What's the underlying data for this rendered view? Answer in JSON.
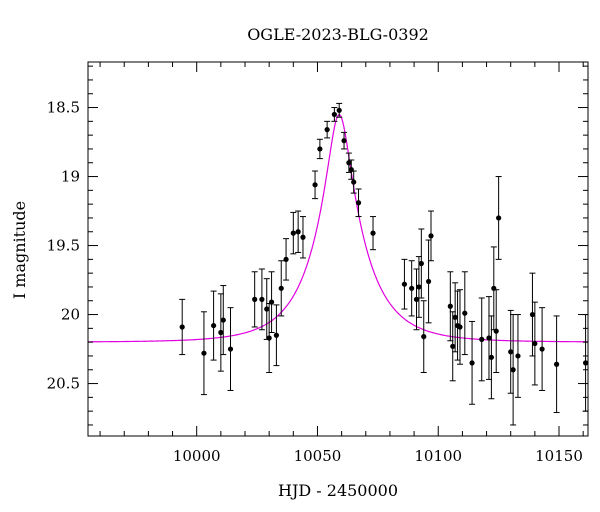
{
  "chart_data": {
    "type": "scatter",
    "title": "OGLE-2023-BLG-0392",
    "xlabel": "HJD - 2450000",
    "ylabel": "I magnitude",
    "xlim": [
      9955,
      10162
    ],
    "ylim": [
      20.88,
      18.17
    ],
    "y_inverted": true,
    "grid": false,
    "x_ticks": [
      10000,
      10050,
      10100,
      10150
    ],
    "x_tick_labels": [
      "10000",
      "10050",
      "10100",
      "10150"
    ],
    "y_ticks": [
      18.5,
      19,
      19.5,
      20,
      20.5
    ],
    "y_tick_labels": [
      "18.5",
      "19",
      "19.5",
      "20",
      "20.5"
    ],
    "colors": {
      "model": "#e100e1",
      "points": "#000000"
    },
    "model": {
      "name": "",
      "type": "point-lens fit",
      "peak_time": 10059,
      "peak_mag": 18.55,
      "baseline_mag": 20.2
    },
    "series": [
      {
        "name": "",
        "x": [
          9994,
          10003,
          10007,
          10010,
          10011,
          10014,
          10024,
          10027,
          10029,
          10030,
          10031,
          10033,
          10035,
          10037,
          10040,
          10042,
          10044,
          10049,
          10051,
          10054,
          10057,
          10059,
          10061,
          10063,
          10064,
          10065,
          10067,
          10073,
          10086,
          10089,
          10091,
          10092,
          10093,
          10094,
          10096,
          10097,
          10105,
          10106,
          10107,
          10108,
          10109,
          10111,
          10114,
          10118,
          10121,
          10122,
          10123,
          10124,
          10125,
          10130,
          10131,
          10133,
          10139,
          10140,
          10143,
          10149,
          10161
        ],
        "y": [
          20.09,
          20.28,
          20.08,
          20.13,
          20.04,
          20.25,
          19.89,
          19.89,
          19.96,
          20.17,
          19.91,
          20.15,
          19.81,
          19.6,
          19.41,
          19.4,
          19.44,
          19.06,
          18.8,
          18.66,
          18.55,
          18.52,
          18.74,
          18.9,
          18.95,
          19.04,
          19.19,
          19.41,
          19.78,
          19.81,
          19.89,
          19.8,
          19.63,
          20.16,
          19.76,
          19.43,
          19.94,
          20.23,
          20.02,
          20.08,
          20.09,
          19.99,
          20.35,
          20.18,
          20.17,
          20.31,
          19.81,
          20.12,
          19.3,
          20.27,
          20.4,
          20.3,
          20.0,
          20.21,
          20.25,
          20.36,
          20.35
        ],
        "err": [
          0.2,
          0.3,
          0.25,
          0.28,
          0.25,
          0.3,
          0.2,
          0.22,
          0.22,
          0.25,
          0.22,
          0.22,
          0.2,
          0.15,
          0.15,
          0.15,
          0.15,
          0.1,
          0.07,
          0.06,
          0.05,
          0.05,
          0.06,
          0.07,
          0.07,
          0.08,
          0.1,
          0.12,
          0.18,
          0.2,
          0.22,
          0.22,
          0.25,
          0.26,
          0.3,
          0.18,
          0.25,
          0.25,
          0.25,
          0.25,
          0.27,
          0.3,
          0.3,
          0.3,
          0.3,
          0.3,
          0.3,
          0.3,
          0.3,
          0.3,
          0.4,
          0.3,
          0.3,
          0.3,
          0.3,
          0.35,
          0.35
        ]
      }
    ]
  }
}
